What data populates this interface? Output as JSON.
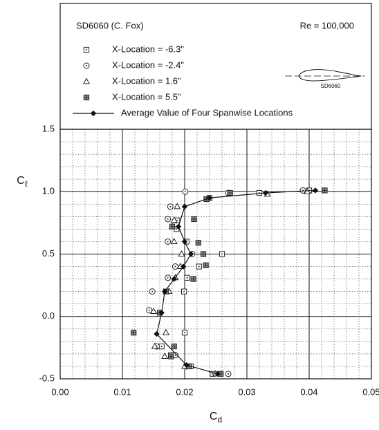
{
  "chart_data": {
    "type": "scatter",
    "title": "SD6060 (C. Fox)",
    "subtitle": "Re = 100,000",
    "airfoil_label": "SD6060",
    "xlabel": {
      "main": "C",
      "sub": "d"
    },
    "ylabel": {
      "main": "C",
      "sub": "ℓ"
    },
    "xlim": [
      0,
      0.05
    ],
    "ylim": [
      -0.5,
      1.5
    ],
    "xticks": [
      {
        "value": 0,
        "label": "0.00"
      },
      0.01,
      0.02,
      0.03,
      0.04,
      0.05
    ],
    "yticks": [
      -0.5,
      {
        "value": 0,
        "label": "0.0"
      },
      0.5,
      {
        "value": 1,
        "label": "1.0"
      },
      1.5
    ],
    "grid": true,
    "minor_grid": true,
    "series": [
      {
        "name": "X-Location = -6.3\"",
        "marker": "square-dot",
        "color": "#222222",
        "x": [
          0.0245,
          0.021,
          0.0178,
          0.0163,
          0.02,
          0.0199,
          0.0204,
          0.0223,
          0.026,
          0.0203,
          0.0187,
          0.0188,
          0.024,
          0.032,
          0.04
        ],
        "values": [
          -0.46,
          -0.4,
          -0.31,
          -0.24,
          -0.13,
          0.2,
          0.31,
          0.4,
          0.5,
          0.6,
          0.7,
          0.77,
          0.95,
          0.99,
          1.01
        ]
      },
      {
        "name": "X-Location = -2.4\"",
        "marker": "circle-dot",
        "color": "#222222",
        "x": [
          0.027,
          0.0203,
          0.0185,
          0.0155,
          0.0143,
          0.0148,
          0.0173,
          0.0185,
          0.0212,
          0.0173,
          0.0173,
          0.0177,
          0.0201,
          0.027,
          0.039
        ],
        "values": [
          -0.46,
          -0.4,
          -0.31,
          -0.24,
          0.05,
          0.2,
          0.31,
          0.4,
          0.5,
          0.6,
          0.78,
          0.88,
          1.0,
          0.99,
          1.01
        ]
      },
      {
        "name": "X-Location =  1.6\"",
        "marker": "triangle",
        "color": "#222222",
        "x": [
          0.025,
          0.02,
          0.0168,
          0.0152,
          0.017,
          0.015,
          0.0175,
          0.0185,
          0.0193,
          0.0195,
          0.0183,
          0.018,
          0.0183,
          0.0188,
          0.0333,
          0.0397
        ],
        "values": [
          -0.46,
          -0.4,
          -0.32,
          -0.24,
          -0.13,
          0.04,
          0.2,
          0.31,
          0.4,
          0.5,
          0.6,
          0.72,
          0.77,
          0.88,
          0.98,
          1.0
        ]
      },
      {
        "name": "X-Location =  5.5\"",
        "marker": "square-filled",
        "color": "#222222",
        "x": [
          0.0258,
          0.0207,
          0.0178,
          0.0183,
          0.0118,
          0.016,
          0.017,
          0.0214,
          0.0234,
          0.023,
          0.0222,
          0.018,
          0.0215,
          0.0235,
          0.0273,
          0.0425
        ],
        "values": [
          -0.46,
          -0.4,
          -0.32,
          -0.24,
          -0.13,
          0.03,
          0.2,
          0.3,
          0.41,
          0.5,
          0.59,
          0.72,
          0.78,
          0.94,
          0.99,
          1.01
        ]
      },
      {
        "name": "Average Value of Four Spanwise Locations",
        "marker": "diamond",
        "line": true,
        "color": "#111111",
        "x": [
          0.0253,
          0.0203,
          0.0155,
          0.0163,
          0.0168,
          0.0183,
          0.0198,
          0.021,
          0.02,
          0.019,
          0.02,
          0.024,
          0.033,
          0.041
        ],
        "values": [
          -0.46,
          -0.39,
          -0.14,
          0.03,
          0.2,
          0.3,
          0.4,
          0.5,
          0.6,
          0.72,
          0.88,
          0.95,
          0.99,
          1.01
        ]
      }
    ]
  }
}
